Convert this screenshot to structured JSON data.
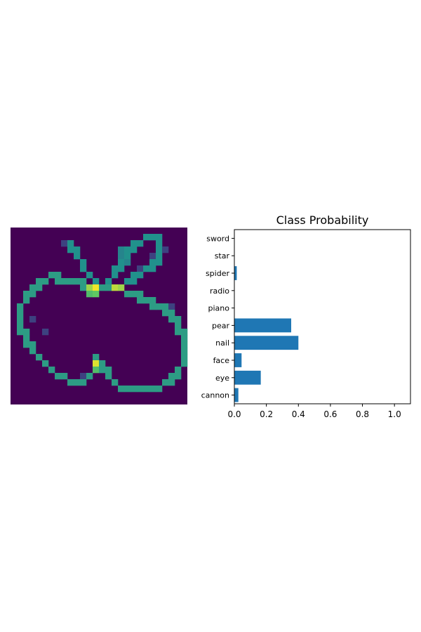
{
  "image_panel": {
    "colormap": "viridis",
    "grid_size": [
      28,
      28
    ],
    "note": "grayscale sketch of an apple rendered with viridis colormap"
  },
  "chart_data": {
    "type": "bar",
    "orientation": "horizontal",
    "title": "Class Probability",
    "categories": [
      "cannon",
      "eye",
      "face",
      "nail",
      "pear",
      "piano",
      "radio",
      "spider",
      "star",
      "sword"
    ],
    "values": [
      0.025,
      0.165,
      0.045,
      0.4,
      0.355,
      0.0,
      0.0,
      0.015,
      0.0,
      0.0
    ],
    "xlim": [
      0,
      1.1
    ],
    "xticks": [
      0.0,
      0.2,
      0.4,
      0.6,
      0.8,
      1.0
    ],
    "xtick_labels": [
      "0.0",
      "0.2",
      "0.4",
      "0.6",
      "0.8",
      "1.0"
    ],
    "bar_color": "#1f77b4",
    "xlabel": "",
    "ylabel": "",
    "grid": false
  }
}
